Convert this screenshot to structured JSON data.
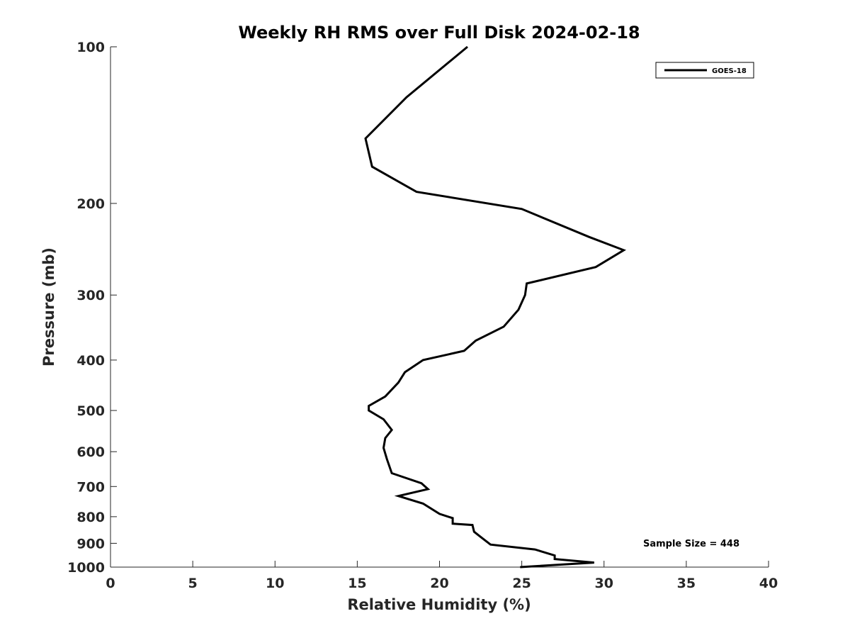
{
  "chart_data": {
    "type": "line",
    "title": "Weekly RH RMS over Full Disk 2024-02-18",
    "xlabel": "Relative Humidity (%)",
    "ylabel": "Pressure (mb)",
    "xlim": [
      0,
      40
    ],
    "ylim": [
      100,
      1000
    ],
    "yscale": "log",
    "y_reversed": true,
    "grid": false,
    "x_ticks": [
      0,
      5,
      10,
      15,
      20,
      25,
      30,
      35,
      40
    ],
    "y_ticks": [
      100,
      200,
      300,
      400,
      500,
      600,
      700,
      800,
      900,
      1000
    ],
    "legend_position": "top-right",
    "annotation": "Sample Size = 448",
    "line_color": "#000000",
    "series": [
      {
        "name": "GOES-18",
        "x": [
          21.7,
          18.0,
          15.5,
          15.9,
          18.6,
          25.0,
          29.1,
          31.2,
          29.5,
          25.3,
          25.2,
          24.8,
          23.9,
          22.2,
          21.5,
          19.0,
          17.9,
          17.5,
          16.7,
          15.7,
          15.7,
          16.6,
          17.1,
          16.7,
          16.6,
          16.8,
          17.1,
          18.9,
          19.3,
          17.5,
          19.0,
          20.0,
          20.8,
          20.8,
          22.0,
          22.1,
          22.4,
          23.1,
          25.8,
          27.0,
          27.0,
          29.4,
          24.9
        ],
        "y": [
          100,
          125,
          150,
          170,
          190,
          205,
          232,
          246,
          265,
          285,
          300,
          320,
          345,
          367,
          384,
          400,
          422,
          442,
          470,
          490,
          500,
          520,
          545,
          565,
          590,
          620,
          660,
          690,
          708,
          730,
          755,
          790,
          805,
          825,
          830,
          855,
          870,
          905,
          925,
          950,
          965,
          980,
          1000
        ]
      }
    ]
  }
}
